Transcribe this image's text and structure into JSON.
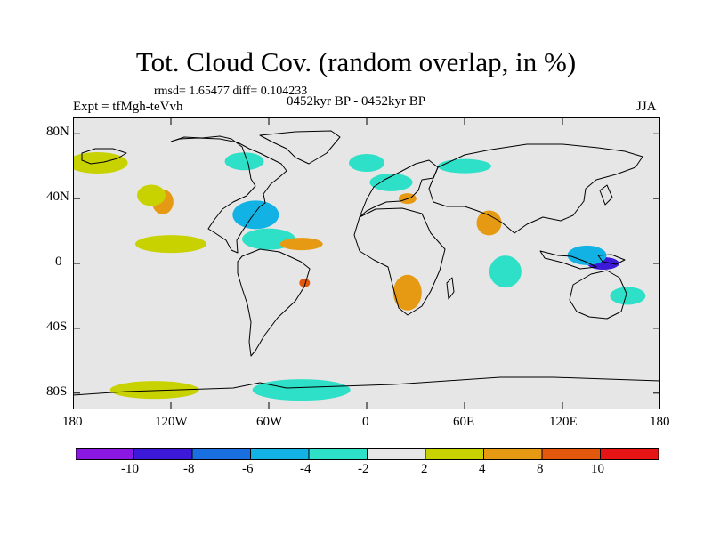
{
  "title": "Tot. Cloud Cov. (random overlap, in %)",
  "stats": "rmsd= 1.65477 diff= 0.104233",
  "expt": "Expt = tfMgh-teVvh",
  "period": "0452kyr BP - 0452kyr BP",
  "season": "JJA",
  "y_axis": {
    "labels": [
      "80N",
      "40N",
      "0",
      "40S",
      "80S"
    ],
    "values": [
      80,
      40,
      0,
      -40,
      -80
    ],
    "range": [
      -90,
      90
    ]
  },
  "x_axis": {
    "labels": [
      "180",
      "120W",
      "60W",
      "0",
      "60E",
      "120E",
      "180"
    ],
    "values": [
      -180,
      -120,
      -60,
      0,
      60,
      120,
      180
    ],
    "range": [
      -180,
      180
    ]
  },
  "colors": {
    "background": "#e6e6e6",
    "lt_-10": "#8a18e2",
    "-10_-8": "#3c18d8",
    "-8_-6": "#1a6fe0",
    "-6_-4": "#12b2e4",
    "-4_-2": "#2ee0c8",
    "-2_2": "#e6e6e6",
    "2_4": "#c8d200",
    "4_8": "#e69a14",
    "8_10": "#e2580c",
    "gt_10": "#e61414"
  },
  "colorbar": {
    "boundaries": [
      "-10",
      "-8",
      "-6",
      "-4",
      "-2",
      "2",
      "4",
      "8",
      "10"
    ],
    "bins": [
      "lt_-10",
      "-10_-8",
      "-8_-6",
      "-6_-4",
      "-4_-2",
      "-2_2",
      "2_4",
      "4_8",
      "8_10",
      "gt_10"
    ]
  },
  "anomaly_regions": [
    {
      "lon": -165,
      "lat": 62,
      "bin": "2_4"
    },
    {
      "lon": -125,
      "lat": 38,
      "bin": "4_8"
    },
    {
      "lon": -132,
      "lat": 42,
      "bin": "2_4"
    },
    {
      "lon": -120,
      "lat": 12,
      "bin": "2_4"
    },
    {
      "lon": -75,
      "lat": 63,
      "bin": "-4_-2"
    },
    {
      "lon": -68,
      "lat": 30,
      "bin": "-6_-4"
    },
    {
      "lon": -60,
      "lat": 15,
      "bin": "-4_-2"
    },
    {
      "lon": -40,
      "lat": 12,
      "bin": "4_8"
    },
    {
      "lon": -38,
      "lat": -12,
      "bin": "8_10"
    },
    {
      "lon": 0,
      "lat": 62,
      "bin": "-4_-2"
    },
    {
      "lon": 15,
      "lat": 50,
      "bin": "-4_-2"
    },
    {
      "lon": 25,
      "lat": 40,
      "bin": "4_8"
    },
    {
      "lon": 25,
      "lat": -18,
      "bin": "4_8"
    },
    {
      "lon": 60,
      "lat": 60,
      "bin": "-4_-2"
    },
    {
      "lon": 75,
      "lat": 25,
      "bin": "4_8"
    },
    {
      "lon": 85,
      "lat": -5,
      "bin": "-4_-2"
    },
    {
      "lon": 145,
      "lat": 0,
      "bin": "-10_-8"
    },
    {
      "lon": 135,
      "lat": 5,
      "bin": "-6_-4"
    },
    {
      "lon": 160,
      "lat": -20,
      "bin": "-4_-2"
    },
    {
      "lon": -130,
      "lat": -78,
      "bin": "2_4"
    },
    {
      "lon": -40,
      "lat": -78,
      "bin": "-4_-2"
    }
  ]
}
